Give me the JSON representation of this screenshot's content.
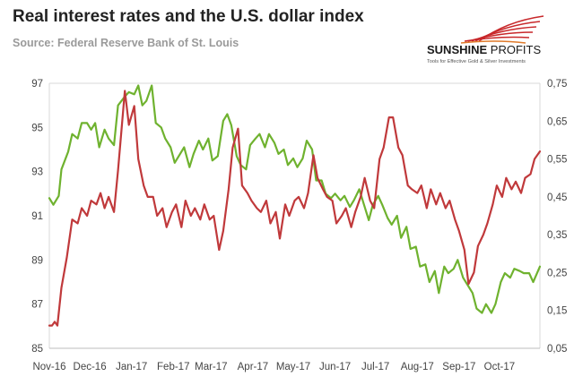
{
  "title": "Real interest rates and the U.S. dollar index",
  "subtitle": "Source: Federal Reserve Bank of St. Louis",
  "logo": {
    "name": "SUNSHINE PROFITS",
    "tagline": "Tools for Effective Gold & Silver Investments"
  },
  "colors": {
    "dollar_index": "#6fb22f",
    "real_rates": "#c0393b",
    "logo_red": "#c8282b"
  },
  "chart_data": {
    "type": "line",
    "grid": false,
    "legend": "none",
    "x_range": [
      "2016-11-01",
      "2017-10-31"
    ],
    "x_tick_labels": [
      "Nov-16",
      "Dec-16",
      "Jan-17",
      "Feb-17",
      "Mar-17",
      "Apr-17",
      "May-17",
      "Jun-17",
      "Jul-17",
      "Aug-17",
      "Sep-17",
      "Oct-17"
    ],
    "y_left": {
      "range": [
        85,
        97
      ],
      "ticks": [
        "85",
        "87",
        "89",
        "91",
        "93",
        "95",
        "97"
      ]
    },
    "y_right": {
      "range": [
        0.05,
        0.75
      ],
      "ticks": [
        "0,05",
        "0,15",
        "0,25",
        "0,35",
        "0,45",
        "0,55",
        "0,65",
        "0,75"
      ]
    },
    "series": [
      {
        "axis": "left",
        "color": "#6fb22f",
        "points": [
          [
            "2016-11-01",
            91.8
          ],
          [
            "2016-11-04",
            91.5
          ],
          [
            "2016-11-08",
            91.9
          ],
          [
            "2016-11-10",
            93.1
          ],
          [
            "2016-11-15",
            93.9
          ],
          [
            "2016-11-18",
            94.7
          ],
          [
            "2016-11-22",
            94.5
          ],
          [
            "2016-11-25",
            95.2
          ],
          [
            "2016-11-29",
            95.2
          ],
          [
            "2016-12-02",
            94.9
          ],
          [
            "2016-12-05",
            95.2
          ],
          [
            "2016-12-08",
            94.1
          ],
          [
            "2016-12-12",
            94.9
          ],
          [
            "2016-12-15",
            94.5
          ],
          [
            "2016-12-19",
            94.2
          ],
          [
            "2016-12-22",
            96.0
          ],
          [
            "2016-12-27",
            96.4
          ],
          [
            "2016-12-30",
            96.6
          ],
          [
            "2017-01-03",
            96.5
          ],
          [
            "2017-01-06",
            96.9
          ],
          [
            "2017-01-09",
            96.0
          ],
          [
            "2017-01-12",
            96.2
          ],
          [
            "2017-01-16",
            96.9
          ],
          [
            "2017-01-19",
            95.2
          ],
          [
            "2017-01-23",
            95.0
          ],
          [
            "2017-01-26",
            94.5
          ],
          [
            "2017-01-30",
            94.1
          ],
          [
            "2017-02-02",
            93.4
          ],
          [
            "2017-02-06",
            93.8
          ],
          [
            "2017-02-09",
            94.1
          ],
          [
            "2017-02-13",
            93.2
          ],
          [
            "2017-02-16",
            93.8
          ],
          [
            "2017-02-20",
            94.4
          ],
          [
            "2017-02-23",
            94.0
          ],
          [
            "2017-02-27",
            94.5
          ],
          [
            "2017-03-02",
            93.5
          ],
          [
            "2017-03-06",
            93.7
          ],
          [
            "2017-03-10",
            95.3
          ],
          [
            "2017-03-13",
            95.6
          ],
          [
            "2017-03-16",
            95.1
          ],
          [
            "2017-03-20",
            93.7
          ],
          [
            "2017-03-23",
            93.3
          ],
          [
            "2017-03-27",
            93.1
          ],
          [
            "2017-03-30",
            94.2
          ],
          [
            "2017-04-03",
            94.5
          ],
          [
            "2017-04-06",
            94.7
          ],
          [
            "2017-04-10",
            94.1
          ],
          [
            "2017-04-13",
            94.7
          ],
          [
            "2017-04-17",
            94.3
          ],
          [
            "2017-04-20",
            93.8
          ],
          [
            "2017-04-24",
            94.0
          ],
          [
            "2017-04-27",
            93.3
          ],
          [
            "2017-05-01",
            93.6
          ],
          [
            "2017-05-04",
            93.2
          ],
          [
            "2017-05-08",
            93.6
          ],
          [
            "2017-05-11",
            94.4
          ],
          [
            "2017-05-15",
            94.0
          ],
          [
            "2017-05-18",
            92.6
          ],
          [
            "2017-05-22",
            92.6
          ],
          [
            "2017-05-25",
            92.0
          ],
          [
            "2017-05-29",
            91.8
          ],
          [
            "2017-06-01",
            92.0
          ],
          [
            "2017-06-05",
            91.7
          ],
          [
            "2017-06-08",
            91.9
          ],
          [
            "2017-06-12",
            91.4
          ],
          [
            "2017-06-15",
            91.7
          ],
          [
            "2017-06-19",
            92.2
          ],
          [
            "2017-06-22",
            91.6
          ],
          [
            "2017-06-26",
            90.8
          ],
          [
            "2017-06-29",
            91.5
          ],
          [
            "2017-07-03",
            91.9
          ],
          [
            "2017-07-06",
            91.5
          ],
          [
            "2017-07-10",
            90.9
          ],
          [
            "2017-07-13",
            90.6
          ],
          [
            "2017-07-17",
            91.0
          ],
          [
            "2017-07-20",
            90.0
          ],
          [
            "2017-07-24",
            90.5
          ],
          [
            "2017-07-27",
            89.5
          ],
          [
            "2017-07-31",
            89.6
          ],
          [
            "2017-08-03",
            88.7
          ],
          [
            "2017-08-07",
            88.8
          ],
          [
            "2017-08-10",
            88.0
          ],
          [
            "2017-08-14",
            88.5
          ],
          [
            "2017-08-17",
            87.5
          ],
          [
            "2017-08-21",
            88.7
          ],
          [
            "2017-08-24",
            88.4
          ],
          [
            "2017-08-28",
            88.6
          ],
          [
            "2017-08-31",
            89.0
          ],
          [
            "2017-09-04",
            88.2
          ],
          [
            "2017-09-07",
            87.9
          ],
          [
            "2017-09-11",
            87.5
          ],
          [
            "2017-09-14",
            86.8
          ],
          [
            "2017-09-18",
            86.6
          ],
          [
            "2017-09-21",
            87.0
          ],
          [
            "2017-09-25",
            86.6
          ],
          [
            "2017-09-28",
            87.0
          ],
          [
            "2017-10-02",
            88.0
          ],
          [
            "2017-10-05",
            88.4
          ],
          [
            "2017-10-09",
            88.2
          ],
          [
            "2017-10-12",
            88.6
          ],
          [
            "2017-10-16",
            88.5
          ],
          [
            "2017-10-19",
            88.4
          ],
          [
            "2017-10-23",
            88.4
          ],
          [
            "2017-10-26",
            88.0
          ],
          [
            "2017-10-31",
            88.7
          ]
        ]
      },
      {
        "axis": "right",
        "color": "#c0393b",
        "points": [
          [
            "2016-11-01",
            0.11
          ],
          [
            "2016-11-03",
            0.11
          ],
          [
            "2016-11-05",
            0.12
          ],
          [
            "2016-11-07",
            0.11
          ],
          [
            "2016-11-10",
            0.21
          ],
          [
            "2016-11-14",
            0.29
          ],
          [
            "2016-11-18",
            0.39
          ],
          [
            "2016-11-22",
            0.38
          ],
          [
            "2016-11-25",
            0.42
          ],
          [
            "2016-11-29",
            0.4
          ],
          [
            "2016-12-02",
            0.44
          ],
          [
            "2016-12-06",
            0.43
          ],
          [
            "2016-12-09",
            0.46
          ],
          [
            "2016-12-12",
            0.42
          ],
          [
            "2016-12-15",
            0.45
          ],
          [
            "2016-12-19",
            0.41
          ],
          [
            "2016-12-22",
            0.52
          ],
          [
            "2016-12-27",
            0.73
          ],
          [
            "2016-12-30",
            0.64
          ],
          [
            "2017-01-03",
            0.69
          ],
          [
            "2017-01-06",
            0.55
          ],
          [
            "2017-01-10",
            0.48
          ],
          [
            "2017-01-13",
            0.45
          ],
          [
            "2017-01-17",
            0.45
          ],
          [
            "2017-01-20",
            0.4
          ],
          [
            "2017-01-24",
            0.42
          ],
          [
            "2017-01-27",
            0.37
          ],
          [
            "2017-01-31",
            0.41
          ],
          [
            "2017-02-03",
            0.43
          ],
          [
            "2017-02-07",
            0.37
          ],
          [
            "2017-02-10",
            0.44
          ],
          [
            "2017-02-14",
            0.4
          ],
          [
            "2017-02-17",
            0.42
          ],
          [
            "2017-02-21",
            0.39
          ],
          [
            "2017-02-24",
            0.43
          ],
          [
            "2017-02-28",
            0.39
          ],
          [
            "2017-03-03",
            0.4
          ],
          [
            "2017-03-07",
            0.31
          ],
          [
            "2017-03-10",
            0.36
          ],
          [
            "2017-03-14",
            0.47
          ],
          [
            "2017-03-17",
            0.58
          ],
          [
            "2017-03-21",
            0.63
          ],
          [
            "2017-03-24",
            0.48
          ],
          [
            "2017-03-28",
            0.46
          ],
          [
            "2017-03-31",
            0.44
          ],
          [
            "2017-04-04",
            0.42
          ],
          [
            "2017-04-07",
            0.41
          ],
          [
            "2017-04-11",
            0.44
          ],
          [
            "2017-04-14",
            0.38
          ],
          [
            "2017-04-18",
            0.41
          ],
          [
            "2017-04-21",
            0.34
          ],
          [
            "2017-04-25",
            0.43
          ],
          [
            "2017-04-28",
            0.4
          ],
          [
            "2017-05-02",
            0.44
          ],
          [
            "2017-05-05",
            0.45
          ],
          [
            "2017-05-09",
            0.42
          ],
          [
            "2017-05-12",
            0.46
          ],
          [
            "2017-05-16",
            0.56
          ],
          [
            "2017-05-19",
            0.5
          ],
          [
            "2017-05-23",
            0.47
          ],
          [
            "2017-05-26",
            0.45
          ],
          [
            "2017-05-30",
            0.44
          ],
          [
            "2017-06-02",
            0.38
          ],
          [
            "2017-06-06",
            0.4
          ],
          [
            "2017-06-09",
            0.42
          ],
          [
            "2017-06-13",
            0.37
          ],
          [
            "2017-06-16",
            0.41
          ],
          [
            "2017-06-20",
            0.45
          ],
          [
            "2017-06-23",
            0.5
          ],
          [
            "2017-06-27",
            0.44
          ],
          [
            "2017-06-30",
            0.42
          ],
          [
            "2017-07-04",
            0.55
          ],
          [
            "2017-07-07",
            0.58
          ],
          [
            "2017-07-11",
            0.66
          ],
          [
            "2017-07-14",
            0.66
          ],
          [
            "2017-07-18",
            0.58
          ],
          [
            "2017-07-21",
            0.56
          ],
          [
            "2017-07-25",
            0.48
          ],
          [
            "2017-07-28",
            0.47
          ],
          [
            "2017-08-01",
            0.46
          ],
          [
            "2017-08-04",
            0.48
          ],
          [
            "2017-08-08",
            0.42
          ],
          [
            "2017-08-11",
            0.47
          ],
          [
            "2017-08-15",
            0.43
          ],
          [
            "2017-08-18",
            0.46
          ],
          [
            "2017-08-22",
            0.42
          ],
          [
            "2017-08-25",
            0.44
          ],
          [
            "2017-08-29",
            0.39
          ],
          [
            "2017-09-01",
            0.36
          ],
          [
            "2017-09-05",
            0.31
          ],
          [
            "2017-09-08",
            0.22
          ],
          [
            "2017-09-12",
            0.25
          ],
          [
            "2017-09-15",
            0.32
          ],
          [
            "2017-09-19",
            0.35
          ],
          [
            "2017-09-22",
            0.38
          ],
          [
            "2017-09-26",
            0.43
          ],
          [
            "2017-09-29",
            0.48
          ],
          [
            "2017-10-03",
            0.45
          ],
          [
            "2017-10-06",
            0.5
          ],
          [
            "2017-10-10",
            0.47
          ],
          [
            "2017-10-13",
            0.49
          ],
          [
            "2017-10-17",
            0.46
          ],
          [
            "2017-10-20",
            0.5
          ],
          [
            "2017-10-24",
            0.51
          ],
          [
            "2017-10-27",
            0.55
          ],
          [
            "2017-10-31",
            0.57
          ]
        ]
      }
    ]
  }
}
